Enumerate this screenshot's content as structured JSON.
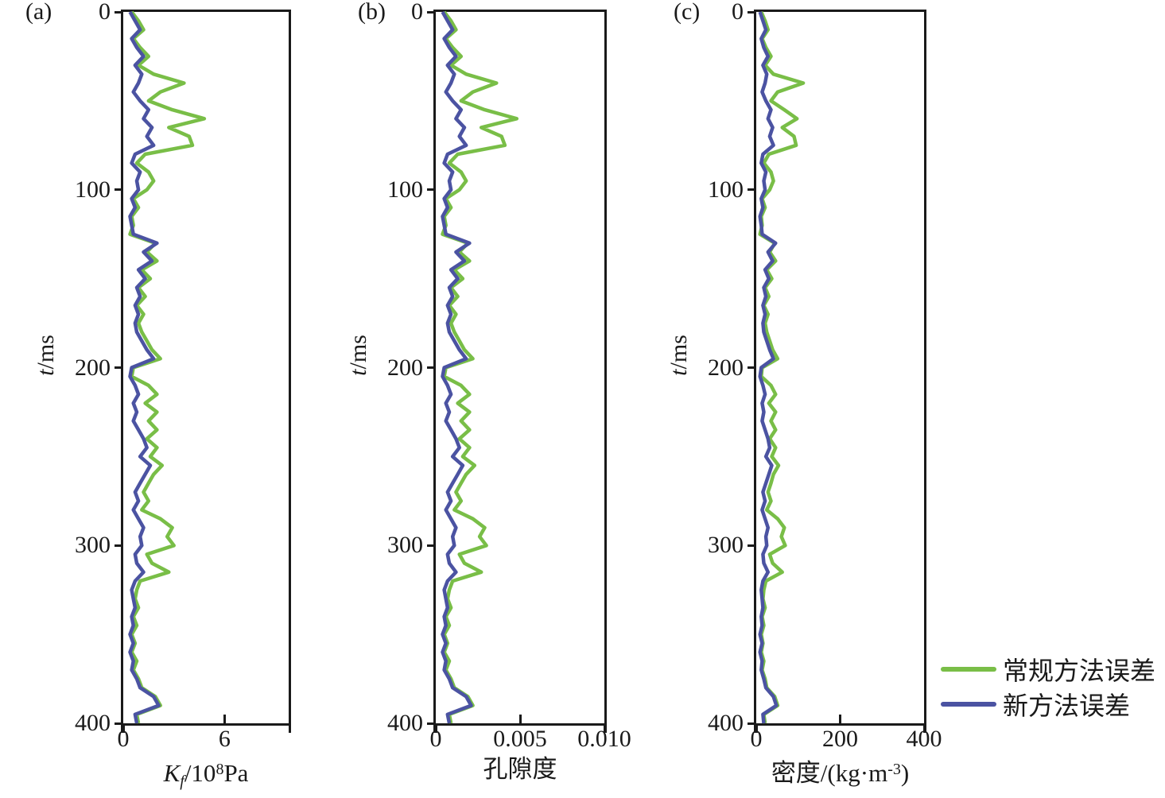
{
  "chart_data": {
    "type": "line",
    "layout": "three vertical error-profile panels, value on x-axis, time increasing downward on y-axis, legend at lower right, grid off, full box frame",
    "t_ms": [
      0,
      5,
      10,
      15,
      20,
      25,
      30,
      35,
      40,
      45,
      50,
      55,
      60,
      65,
      70,
      75,
      80,
      85,
      90,
      95,
      100,
      105,
      110,
      115,
      120,
      125,
      130,
      135,
      140,
      145,
      150,
      155,
      160,
      165,
      170,
      175,
      180,
      185,
      190,
      195,
      200,
      205,
      210,
      215,
      220,
      225,
      230,
      235,
      240,
      245,
      250,
      255,
      260,
      265,
      270,
      275,
      280,
      285,
      290,
      295,
      300,
      305,
      310,
      315,
      320,
      325,
      330,
      335,
      340,
      345,
      350,
      355,
      360,
      365,
      370,
      375,
      380,
      385,
      390,
      395,
      400
    ],
    "charts": [
      {
        "panel": "(a)",
        "xlabel_text": "Kf/10⁸Pa",
        "xlabel_parts": {
          "k": "K",
          "f": "f",
          "rest": "/10",
          "sup": "8",
          "unit": "Pa"
        },
        "ylabel_parts": {
          "italic": "t",
          "rest": "/ms"
        },
        "xlim": [
          0,
          9.8
        ],
        "xticks": [
          {
            "v": 0,
            "label": "0"
          },
          {
            "v": 6,
            "label": "6"
          }
        ],
        "ylim": [
          0,
          400
        ],
        "yticks": [
          0,
          100,
          200,
          300,
          400
        ],
        "series": [
          {
            "name": "常规方法误差",
            "color": "#79BE47",
            "values": [
              0.5,
              0.9,
              1.2,
              0.6,
              1.0,
              1.5,
              0.9,
              1.8,
              3.6,
              2.2,
              1.5,
              2.9,
              4.8,
              2.7,
              3.9,
              4.1,
              1.3,
              0.8,
              1.5,
              1.8,
              1.4,
              0.6,
              0.9,
              0.5,
              0.6,
              0.4,
              1.9,
              1.4,
              2.0,
              1.1,
              1.6,
              0.9,
              1.3,
              0.8,
              1.2,
              0.9,
              1.1,
              1.4,
              1.7,
              2.2,
              0.6,
              0.5,
              1.5,
              2.0,
              1.3,
              2.0,
              1.5,
              2.0,
              1.4,
              2.0,
              1.6,
              2.3,
              1.8,
              1.5,
              1.2,
              1.5,
              1.1,
              2.2,
              2.9,
              2.6,
              3.0,
              1.4,
              1.7,
              2.7,
              1.0,
              0.8,
              0.7,
              0.9,
              0.6,
              0.8,
              0.5,
              0.7,
              0.5,
              0.8,
              0.6,
              0.9,
              1.1,
              1.9,
              2.2,
              0.8,
              0.9
            ]
          },
          {
            "name": "新方法误差",
            "color": "#4B53A2",
            "values": [
              0.4,
              0.7,
              1.0,
              0.5,
              0.8,
              1.2,
              0.7,
              1.1,
              0.9,
              0.6,
              1.0,
              1.5,
              1.2,
              1.7,
              1.4,
              1.8,
              0.7,
              0.5,
              1.0,
              0.8,
              0.9,
              0.5,
              0.7,
              0.4,
              0.5,
              0.6,
              2.0,
              1.2,
              1.7,
              0.9,
              1.3,
              0.8,
              1.0,
              0.7,
              0.9,
              0.7,
              0.8,
              1.1,
              1.4,
              1.8,
              0.5,
              0.4,
              0.7,
              0.9,
              0.6,
              0.8,
              0.6,
              0.9,
              1.2,
              1.4,
              1.0,
              1.6,
              1.3,
              1.0,
              0.7,
              0.9,
              0.6,
              0.9,
              1.2,
              1.0,
              1.1,
              0.7,
              0.8,
              1.2,
              0.7,
              0.5,
              0.6,
              0.7,
              0.5,
              0.6,
              0.4,
              0.6,
              0.4,
              0.6,
              0.5,
              0.8,
              1.0,
              1.8,
              2.1,
              0.7,
              0.8
            ]
          }
        ]
      },
      {
        "panel": "(b)",
        "xlabel_text": "孔隙度",
        "xlabel_parts": {
          "main": "孔隙度"
        },
        "ylabel_parts": {
          "italic": "t",
          "rest": "/ms"
        },
        "xlim": [
          0,
          0.01
        ],
        "xticks": [
          {
            "v": 0,
            "label": "0"
          },
          {
            "v": 0.005,
            "label": "0.005"
          },
          {
            "v": 0.01,
            "label": "0.010"
          }
        ],
        "ylim": [
          0,
          400
        ],
        "yticks": [
          0,
          100,
          200,
          300,
          400
        ],
        "series": [
          {
            "name": "常规方法误差",
            "color": "#79BE47",
            "values": [
              0.0005,
              0.0009,
              0.0012,
              0.0006,
              0.001,
              0.0015,
              0.0009,
              0.0018,
              0.0036,
              0.0022,
              0.0015,
              0.0029,
              0.0048,
              0.0027,
              0.0039,
              0.0041,
              0.0013,
              0.0008,
              0.0015,
              0.0018,
              0.0014,
              0.0006,
              0.0009,
              0.0005,
              0.0006,
              0.0004,
              0.0019,
              0.0014,
              0.002,
              0.0011,
              0.0016,
              0.0009,
              0.0013,
              0.0008,
              0.0012,
              0.0009,
              0.0011,
              0.0014,
              0.0017,
              0.0022,
              0.0006,
              0.0005,
              0.0015,
              0.002,
              0.0013,
              0.002,
              0.0015,
              0.002,
              0.0014,
              0.002,
              0.0016,
              0.0023,
              0.0018,
              0.0015,
              0.0012,
              0.0015,
              0.0011,
              0.0022,
              0.0029,
              0.0026,
              0.003,
              0.0014,
              0.0017,
              0.0027,
              0.001,
              0.0008,
              0.0007,
              0.0009,
              0.0006,
              0.0008,
              0.0005,
              0.0007,
              0.0005,
              0.0008,
              0.0006,
              0.0009,
              0.0011,
              0.0019,
              0.0022,
              0.0008,
              0.0009
            ]
          },
          {
            "name": "新方法误差",
            "color": "#4B53A2",
            "values": [
              0.0004,
              0.0007,
              0.001,
              0.0005,
              0.0008,
              0.0012,
              0.0007,
              0.0011,
              0.0009,
              0.0006,
              0.001,
              0.0015,
              0.0012,
              0.0017,
              0.0014,
              0.0018,
              0.0007,
              0.0005,
              0.001,
              0.0008,
              0.0009,
              0.0005,
              0.0007,
              0.0004,
              0.0005,
              0.0006,
              0.002,
              0.0012,
              0.0017,
              0.0009,
              0.0013,
              0.0008,
              0.001,
              0.0007,
              0.0009,
              0.0007,
              0.0008,
              0.0011,
              0.0014,
              0.0018,
              0.0005,
              0.0004,
              0.0007,
              0.0009,
              0.0006,
              0.0008,
              0.0006,
              0.0009,
              0.0012,
              0.0014,
              0.001,
              0.0016,
              0.0013,
              0.001,
              0.0007,
              0.0009,
              0.0006,
              0.0009,
              0.0012,
              0.001,
              0.0011,
              0.0007,
              0.0008,
              0.0012,
              0.0007,
              0.0005,
              0.0006,
              0.0007,
              0.0005,
              0.0006,
              0.0004,
              0.0006,
              0.0004,
              0.0006,
              0.0005,
              0.0008,
              0.001,
              0.0018,
              0.0021,
              0.0007,
              0.0008
            ]
          }
        ]
      },
      {
        "panel": "(c)",
        "xlabel_text": "密度/(kg·m⁻³)",
        "xlabel_parts": {
          "pre": "密度/(kg·m",
          "sup": "-3",
          "post": ")"
        },
        "ylabel_parts": {
          "italic": "t",
          "rest": "/ms"
        },
        "xlim": [
          0,
          400
        ],
        "xticks": [
          {
            "v": 0,
            "label": "0"
          },
          {
            "v": 200,
            "label": "200"
          },
          {
            "v": 400,
            "label": "400"
          }
        ],
        "ylim": [
          0,
          400
        ],
        "yticks": [
          0,
          100,
          200,
          300,
          400
        ],
        "series": [
          {
            "name": "常规方法误差",
            "color": "#79BE47",
            "values": [
              12,
              21,
              28,
              14,
              23,
              35,
              21,
              41,
              112,
              51,
              35,
              67,
              97,
              62,
              90,
              95,
              30,
              18,
              35,
              41,
              32,
              14,
              21,
              12,
              14,
              9,
              44,
              32,
              46,
              25,
              37,
              21,
              30,
              18,
              28,
              21,
              25,
              32,
              39,
              51,
              14,
              12,
              35,
              46,
              30,
              46,
              35,
              46,
              32,
              46,
              37,
              53,
              41,
              35,
              28,
              35,
              25,
              51,
              67,
              60,
              69,
              32,
              39,
              62,
              23,
              18,
              16,
              21,
              14,
              18,
              12,
              16,
              12,
              18,
              14,
              21,
              25,
              44,
              51,
              18,
              21
            ]
          },
          {
            "name": "新方法误差",
            "color": "#4B53A2",
            "values": [
              9,
              16,
              23,
              12,
              18,
              28,
              16,
              25,
              21,
              14,
              23,
              35,
              28,
              39,
              32,
              41,
              16,
              12,
              23,
              18,
              21,
              12,
              16,
              9,
              12,
              14,
              46,
              28,
              39,
              21,
              30,
              18,
              23,
              16,
              21,
              16,
              18,
              25,
              32,
              41,
              12,
              9,
              16,
              21,
              14,
              18,
              14,
              21,
              28,
              32,
              23,
              37,
              30,
              23,
              16,
              21,
              14,
              21,
              28,
              23,
              25,
              16,
              18,
              28,
              16,
              12,
              14,
              16,
              12,
              14,
              9,
              14,
              9,
              14,
              12,
              18,
              23,
              41,
              48,
              16,
              18
            ]
          }
        ]
      }
    ]
  },
  "legend": {
    "items": [
      {
        "label": "常规方法误差",
        "color": "#79BE47"
      },
      {
        "label": "新方法误差",
        "color": "#4B53A2"
      }
    ]
  },
  "colors": {
    "axis": "#1a1a1a",
    "conventional_green": "#79BE47",
    "new_method_blue": "#4B53A2"
  }
}
